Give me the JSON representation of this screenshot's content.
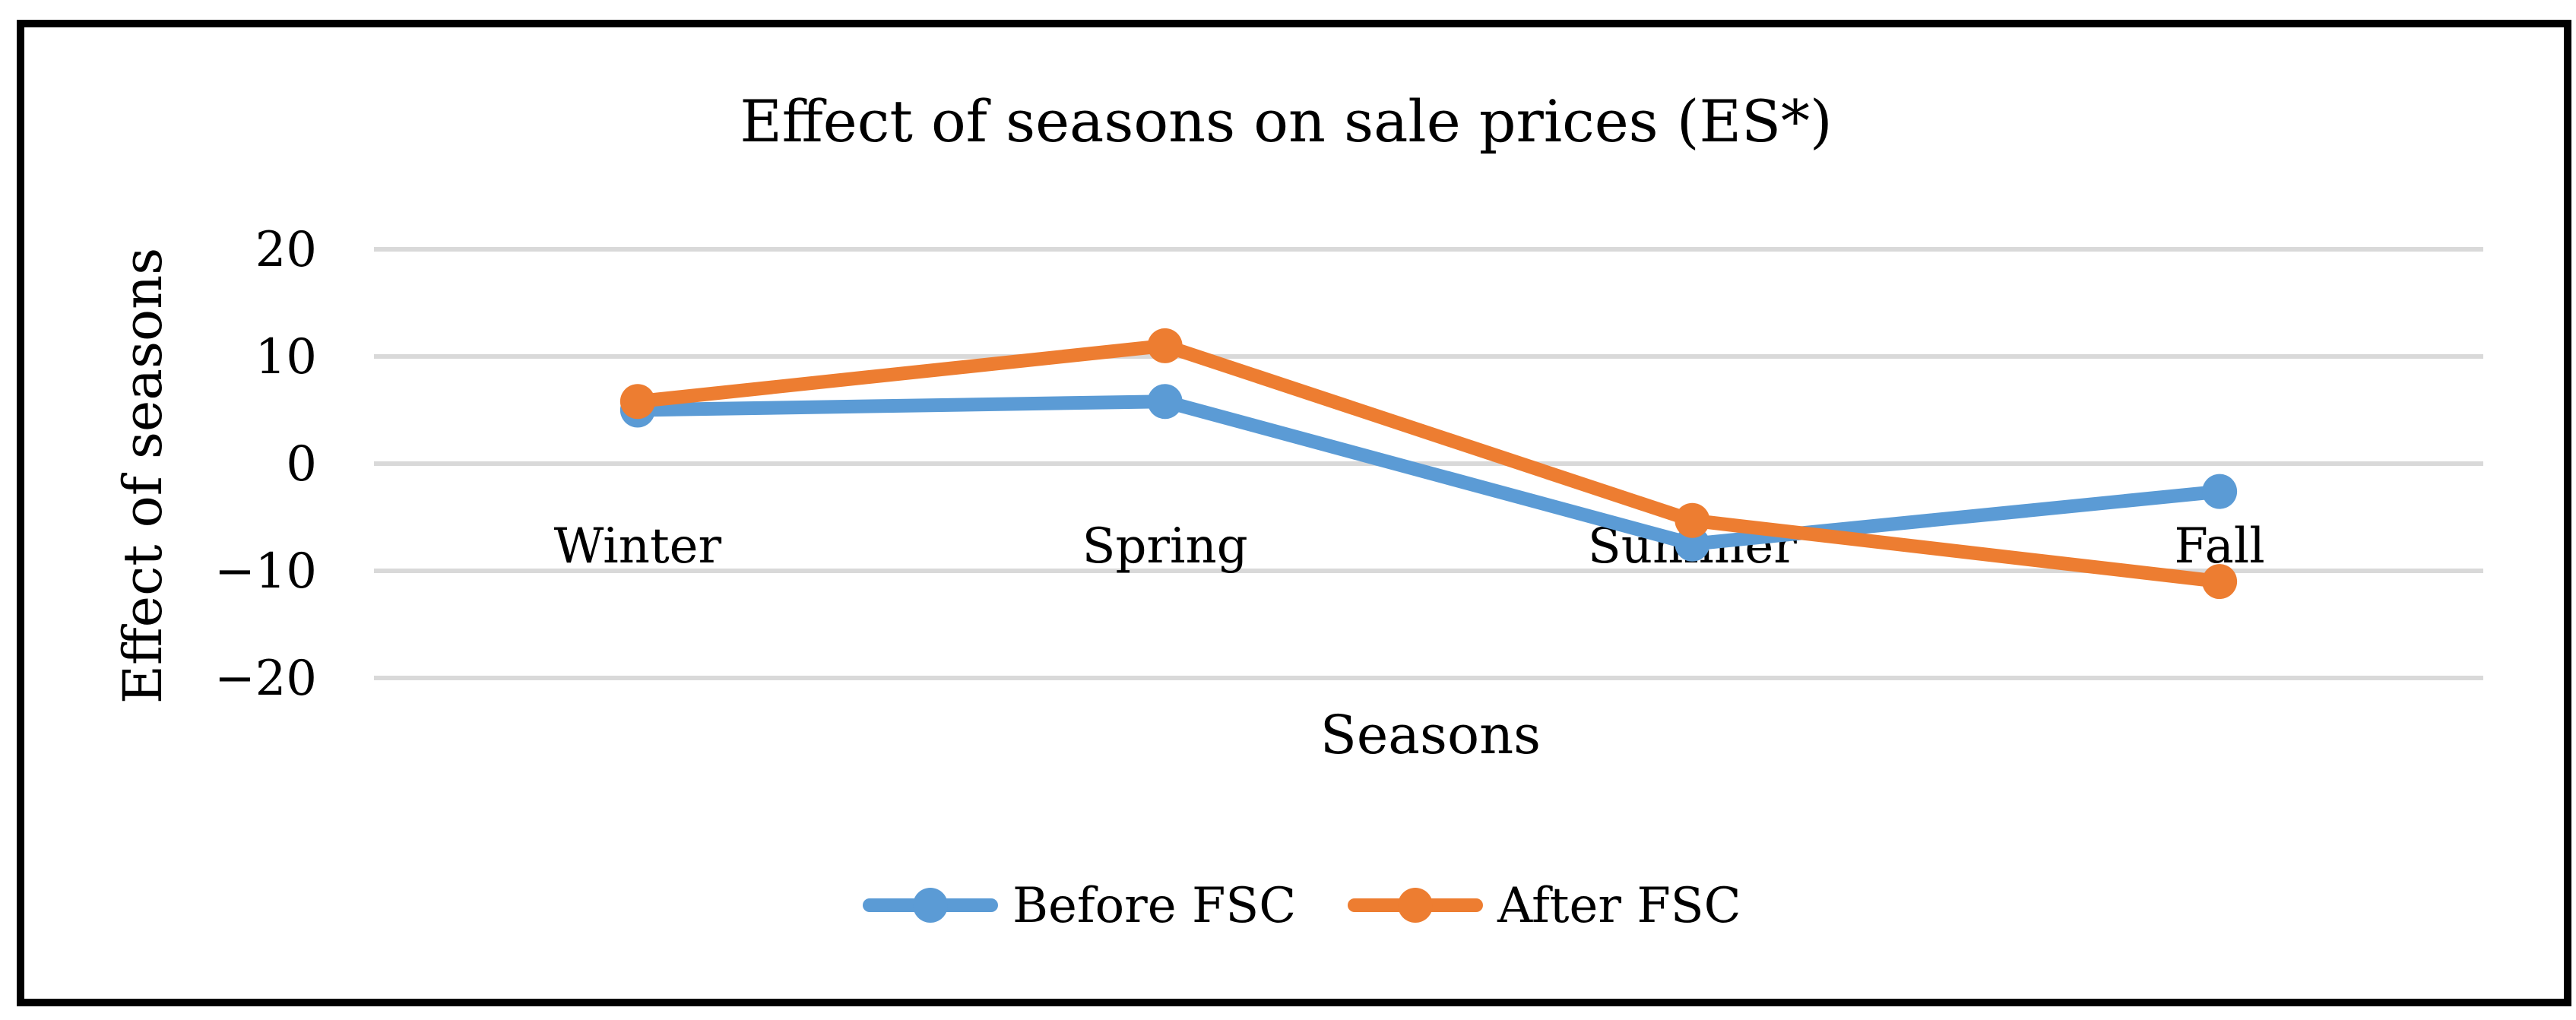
{
  "chart_data": {
    "type": "line",
    "title": "Effect of seasons on sale prices (ES*)",
    "xlabel": "Seasons",
    "ylabel": "Effect of seasons",
    "categories": [
      "Winter",
      "Spring",
      "Summer",
      "Fall"
    ],
    "ylim": [
      -20,
      20
    ],
    "yticks": [
      20,
      10,
      0,
      -10,
      -20
    ],
    "ytick_labels": [
      "20",
      "10",
      "0",
      "−10",
      "−20"
    ],
    "grid": true,
    "legend_position": "bottom",
    "series": [
      {
        "name": "Before FSC",
        "color": "#5b9bd5",
        "values": [
          5,
          5.8,
          -7.5,
          -2.6
        ]
      },
      {
        "name": "After FSC",
        "color": "#ed7d31",
        "values": [
          5.8,
          11,
          -5.3,
          -11
        ]
      }
    ]
  }
}
